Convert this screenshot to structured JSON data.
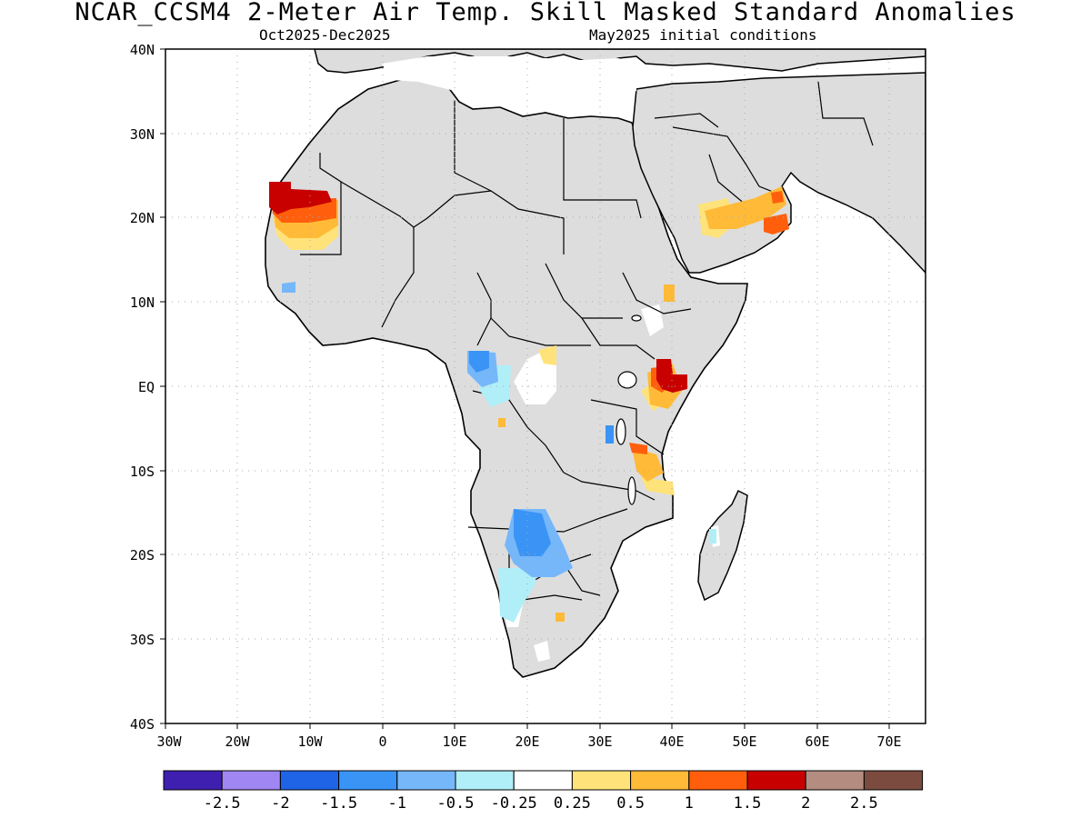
{
  "header": {
    "title": "NCAR_CCSM4 2-Meter Air Temp. Skill Masked Standard Anomalies",
    "period": "Oct2025-Dec2025",
    "init": "May2025 initial conditions"
  },
  "map": {
    "lat_labels": [
      "40N",
      "30N",
      "20N",
      "10N",
      "EQ",
      "10S",
      "20S",
      "30S",
      "40S"
    ],
    "lon_labels": [
      "30W",
      "20W",
      "10W",
      "0",
      "10E",
      "20E",
      "30E",
      "40E",
      "50E",
      "60E",
      "70E"
    ],
    "land_color": "#dddddd",
    "coast_color": "#000000",
    "grid": true,
    "projection": "cylindrical equidistant"
  },
  "colorbar": {
    "colors": [
      "#3f1fb0",
      "#9f86f2",
      "#1f64e6",
      "#3a94f5",
      "#76b7fa",
      "#b0eef8",
      "#ffffff",
      "#ffe37a",
      "#ffba38",
      "#ff5f0c",
      "#c80000",
      "#b48c80",
      "#7a4b3e"
    ],
    "labels": [
      "-2.5",
      "-2",
      "-1.5",
      "-1",
      "-0.5",
      "-0.25",
      "0.25",
      "0.5",
      "1",
      "1.5",
      "2",
      "2.5"
    ]
  }
}
